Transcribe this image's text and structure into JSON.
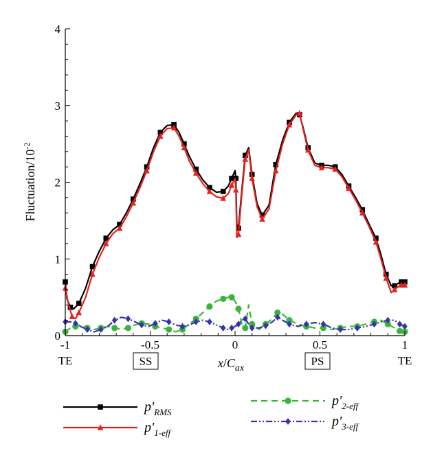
{
  "chart_data": {
    "type": "line",
    "ylabel": "Fluctuation/10",
    "ylabel_exponent": "-2",
    "xlabel_main": "x",
    "xlabel_slash": "/",
    "xlabel_base": "C",
    "xlabel_sub": "ax",
    "xlim": [
      -1,
      1
    ],
    "ylim": [
      0,
      4
    ],
    "xticks": [
      -1,
      -0.5,
      0,
      0.5,
      1
    ],
    "xtick_labels": [
      "-1",
      "-0.5",
      "0",
      "0.5",
      "1"
    ],
    "yticks": [
      0,
      1,
      2,
      3,
      4
    ],
    "ytick_labels": [
      "0",
      "1",
      "2",
      "3",
      "4"
    ],
    "annotations": {
      "te_left": "TE",
      "te_right": "TE",
      "ss": "SS",
      "ps": "PS"
    },
    "grid": false,
    "legend_position": "bottom",
    "series": [
      {
        "name": "p'RMS",
        "legend_main": "p'",
        "legend_sub": "RMS",
        "color": "#000000",
        "dash": "solid",
        "marker": "square",
        "x": [
          -1.0,
          -0.99,
          -0.97,
          -0.95,
          -0.92,
          -0.88,
          -0.84,
          -0.8,
          -0.76,
          -0.72,
          -0.68,
          -0.64,
          -0.6,
          -0.56,
          -0.52,
          -0.48,
          -0.44,
          -0.4,
          -0.36,
          -0.33,
          -0.3,
          -0.27,
          -0.23,
          -0.19,
          -0.15,
          -0.11,
          -0.07,
          -0.04,
          -0.02,
          0.0,
          0.005,
          0.01,
          0.02,
          0.04,
          0.06,
          0.08,
          0.1,
          0.13,
          0.16,
          0.2,
          0.24,
          0.28,
          0.32,
          0.36,
          0.38,
          0.4,
          0.43,
          0.47,
          0.51,
          0.55,
          0.59,
          0.63,
          0.67,
          0.71,
          0.75,
          0.79,
          0.83,
          0.86,
          0.89,
          0.92,
          0.94,
          0.96,
          0.98,
          1.0
        ],
        "y": [
          0.7,
          0.48,
          0.37,
          0.35,
          0.42,
          0.62,
          0.9,
          1.1,
          1.27,
          1.38,
          1.45,
          1.6,
          1.78,
          1.98,
          2.2,
          2.45,
          2.65,
          2.74,
          2.75,
          2.65,
          2.5,
          2.34,
          2.17,
          2.03,
          1.93,
          1.87,
          1.88,
          1.95,
          2.05,
          2.15,
          2.05,
          1.45,
          1.4,
          1.9,
          2.35,
          2.45,
          2.1,
          1.72,
          1.57,
          1.7,
          2.23,
          2.55,
          2.78,
          2.9,
          2.88,
          2.72,
          2.45,
          2.25,
          2.22,
          2.22,
          2.2,
          2.1,
          1.95,
          1.8,
          1.64,
          1.45,
          1.27,
          1.05,
          0.8,
          0.65,
          0.65,
          0.68,
          0.7,
          0.7
        ]
      },
      {
        "name": "p'1-eff",
        "legend_main": "p'",
        "legend_sub": "1-eff",
        "color": "#e3231f",
        "dash": "solid",
        "marker": "triangle",
        "x": [
          -1.0,
          -0.98,
          -0.96,
          -0.94,
          -0.92,
          -0.88,
          -0.84,
          -0.8,
          -0.76,
          -0.72,
          -0.68,
          -0.64,
          -0.6,
          -0.56,
          -0.52,
          -0.48,
          -0.44,
          -0.4,
          -0.36,
          -0.33,
          -0.3,
          -0.27,
          -0.23,
          -0.19,
          -0.15,
          -0.11,
          -0.07,
          -0.04,
          -0.02,
          0.0,
          0.005,
          0.01,
          0.02,
          0.04,
          0.06,
          0.08,
          0.1,
          0.13,
          0.16,
          0.2,
          0.24,
          0.28,
          0.32,
          0.36,
          0.38,
          0.4,
          0.43,
          0.47,
          0.51,
          0.55,
          0.59,
          0.63,
          0.67,
          0.71,
          0.75,
          0.79,
          0.83,
          0.86,
          0.89,
          0.92,
          0.94,
          0.96,
          0.98,
          1.0
        ],
        "y": [
          0.62,
          0.4,
          0.25,
          0.22,
          0.3,
          0.5,
          0.8,
          1.02,
          1.2,
          1.33,
          1.4,
          1.55,
          1.73,
          1.93,
          2.15,
          2.4,
          2.6,
          2.7,
          2.71,
          2.6,
          2.45,
          2.28,
          2.12,
          1.98,
          1.88,
          1.81,
          1.79,
          1.85,
          1.96,
          2.05,
          1.9,
          1.28,
          1.32,
          1.85,
          2.3,
          2.42,
          2.05,
          1.68,
          1.52,
          1.65,
          2.15,
          2.5,
          2.75,
          2.88,
          2.9,
          2.7,
          2.42,
          2.22,
          2.19,
          2.19,
          2.17,
          2.07,
          1.92,
          1.77,
          1.6,
          1.42,
          1.22,
          1.0,
          0.75,
          0.56,
          0.6,
          0.64,
          0.66,
          0.66
        ]
      },
      {
        "name": "p'2-eff",
        "legend_main": "p'",
        "legend_sub": "2-eff",
        "color": "#3cb43c",
        "dash": "dashed",
        "marker": "circle",
        "x": [
          -1.0,
          -0.97,
          -0.94,
          -0.91,
          -0.87,
          -0.83,
          -0.79,
          -0.75,
          -0.71,
          -0.67,
          -0.63,
          -0.59,
          -0.55,
          -0.51,
          -0.47,
          -0.43,
          -0.39,
          -0.35,
          -0.31,
          -0.27,
          -0.23,
          -0.19,
          -0.15,
          -0.11,
          -0.07,
          -0.04,
          -0.02,
          0.0,
          0.02,
          0.04,
          0.06,
          0.08,
          0.1,
          0.14,
          0.18,
          0.22,
          0.25,
          0.28,
          0.32,
          0.37,
          0.42,
          0.47,
          0.52,
          0.57,
          0.62,
          0.67,
          0.72,
          0.77,
          0.82,
          0.86,
          0.9,
          0.94,
          0.97,
          1.0
        ],
        "y": [
          0.05,
          0.1,
          0.12,
          0.14,
          0.1,
          0.08,
          0.1,
          0.12,
          0.1,
          0.08,
          0.1,
          0.14,
          0.16,
          0.15,
          0.12,
          0.1,
          0.08,
          0.05,
          0.08,
          0.15,
          0.22,
          0.3,
          0.38,
          0.45,
          0.48,
          0.5,
          0.5,
          0.45,
          0.35,
          0.15,
          0.1,
          0.4,
          0.15,
          0.08,
          0.15,
          0.22,
          0.3,
          0.28,
          0.2,
          0.15,
          0.12,
          0.1,
          0.1,
          0.08,
          0.1,
          0.12,
          0.12,
          0.15,
          0.18,
          0.2,
          0.15,
          0.1,
          0.06,
          0.05
        ]
      },
      {
        "name": "p'3-eff",
        "legend_main": "p'",
        "legend_sub": "3-eff",
        "color": "#3333aa",
        "dash": "dashdotdot",
        "marker": "diamond",
        "x": [
          -1.0,
          -0.97,
          -0.94,
          -0.91,
          -0.87,
          -0.83,
          -0.79,
          -0.75,
          -0.71,
          -0.67,
          -0.63,
          -0.59,
          -0.55,
          -0.51,
          -0.47,
          -0.43,
          -0.39,
          -0.35,
          -0.31,
          -0.27,
          -0.23,
          -0.19,
          -0.15,
          -0.11,
          -0.07,
          -0.04,
          -0.02,
          0.0,
          0.02,
          0.04,
          0.06,
          0.08,
          0.1,
          0.14,
          0.18,
          0.22,
          0.25,
          0.28,
          0.32,
          0.37,
          0.42,
          0.47,
          0.52,
          0.57,
          0.62,
          0.67,
          0.72,
          0.77,
          0.82,
          0.86,
          0.9,
          0.94,
          0.97,
          1.0
        ],
        "y": [
          0.18,
          0.18,
          0.16,
          0.12,
          0.08,
          0.05,
          0.08,
          0.12,
          0.2,
          0.24,
          0.22,
          0.18,
          0.14,
          0.12,
          0.16,
          0.2,
          0.18,
          0.14,
          0.12,
          0.14,
          0.18,
          0.2,
          0.18,
          0.14,
          0.1,
          0.08,
          0.1,
          0.12,
          0.15,
          0.2,
          0.22,
          0.15,
          0.1,
          0.1,
          0.13,
          0.18,
          0.24,
          0.2,
          0.15,
          0.12,
          0.15,
          0.17,
          0.15,
          0.1,
          0.08,
          0.08,
          0.1,
          0.12,
          0.15,
          0.18,
          0.2,
          0.2,
          0.15,
          0.12
        ]
      }
    ]
  }
}
